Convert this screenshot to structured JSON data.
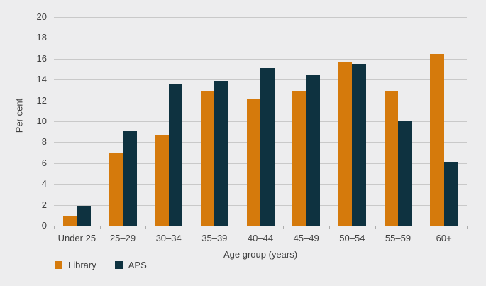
{
  "chart_data": {
    "type": "bar",
    "title": "",
    "xlabel": "Age group (years)",
    "ylabel": "Per cent",
    "categories": [
      "Under 25",
      "25–29",
      "30–34",
      "35–39",
      "40–44",
      "45–49",
      "50–54",
      "55–59",
      "60+"
    ],
    "series": [
      {
        "name": "Library",
        "color": "#D57A0C",
        "values": [
          0.9,
          7.0,
          8.7,
          12.9,
          12.2,
          12.9,
          15.7,
          12.9,
          16.5
        ]
      },
      {
        "name": "APS",
        "color": "#0E3240",
        "values": [
          1.9,
          9.1,
          13.6,
          13.9,
          15.1,
          14.4,
          15.5,
          10.0,
          6.1
        ]
      }
    ],
    "ylim": [
      0,
      20
    ],
    "yticks": [
      0,
      2,
      4,
      6,
      8,
      10,
      12,
      14,
      16,
      18,
      20
    ],
    "grid": true,
    "legend_position": "bottom-left",
    "colors": {
      "background": "#EDEDEE",
      "gridline": "#C9C9C9",
      "axis_line": "#ADADAD",
      "text": "#404040",
      "library_orange": "#D57A0C",
      "aps_navy": "#0E3240"
    }
  }
}
